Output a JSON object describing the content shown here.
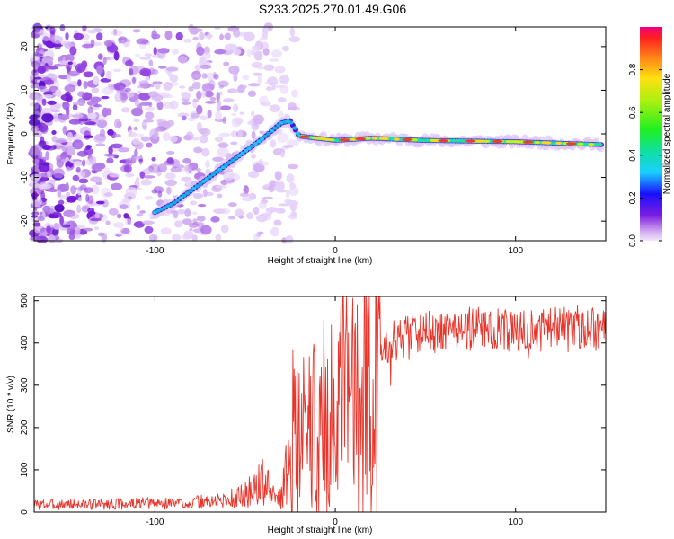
{
  "title": "S233.2025.270.01.49.G06",
  "chart_data": [
    {
      "type": "heatmap",
      "title": "S233.2025.270.01.49.G06",
      "xlabel": "Height of straight line (km)",
      "ylabel": "Frequency (Hz)",
      "xlim": [
        -167,
        150
      ],
      "ylim": [
        -24.5,
        24.5
      ],
      "xticks": [
        -100,
        0,
        100
      ],
      "yticks": [
        -20,
        -10,
        0,
        10,
        20
      ],
      "colorbar": {
        "label": "Normalized spectral amplitude",
        "range": [
          0,
          1
        ],
        "ticks": [
          0.0,
          0.2,
          0.4,
          0.6,
          0.8
        ]
      },
      "signal_ridge": {
        "x": [
          -100,
          -90,
          -80,
          -70,
          -60,
          -50,
          -40,
          -30,
          -25,
          -20,
          0,
          20,
          50,
          100,
          150
        ],
        "y": [
          -18,
          -16,
          -13,
          -10,
          -7,
          -4,
          -1,
          2.5,
          3,
          -0.5,
          -1.5,
          -1,
          -1.5,
          -1.8,
          -2.5
        ]
      }
    },
    {
      "type": "line",
      "xlabel": "Height of straight line (km)",
      "ylabel": "SNR (10 * v/v)",
      "xlim": [
        -167,
        150
      ],
      "ylim": [
        0,
        510
      ],
      "xticks": [
        -100,
        0,
        100
      ],
      "yticks": [
        0,
        100,
        200,
        300,
        400,
        500
      ],
      "series": [
        {
          "name": "SNR",
          "color": "#e8342a",
          "x": [
            -167,
            -140,
            -110,
            -80,
            -60,
            -50,
            -45,
            -40,
            -35,
            -30,
            -26,
            -24,
            -20,
            -15,
            -10,
            -5,
            0,
            5,
            10,
            15,
            20,
            25,
            30,
            40,
            60,
            80,
            100,
            120,
            150
          ],
          "y": [
            18,
            18,
            20,
            22,
            28,
            40,
            55,
            75,
            40,
            30,
            120,
            200,
            160,
            210,
            180,
            240,
            200,
            260,
            300,
            330,
            360,
            380,
            400,
            420,
            430,
            435,
            425,
            435,
            440
          ]
        }
      ]
    }
  ]
}
